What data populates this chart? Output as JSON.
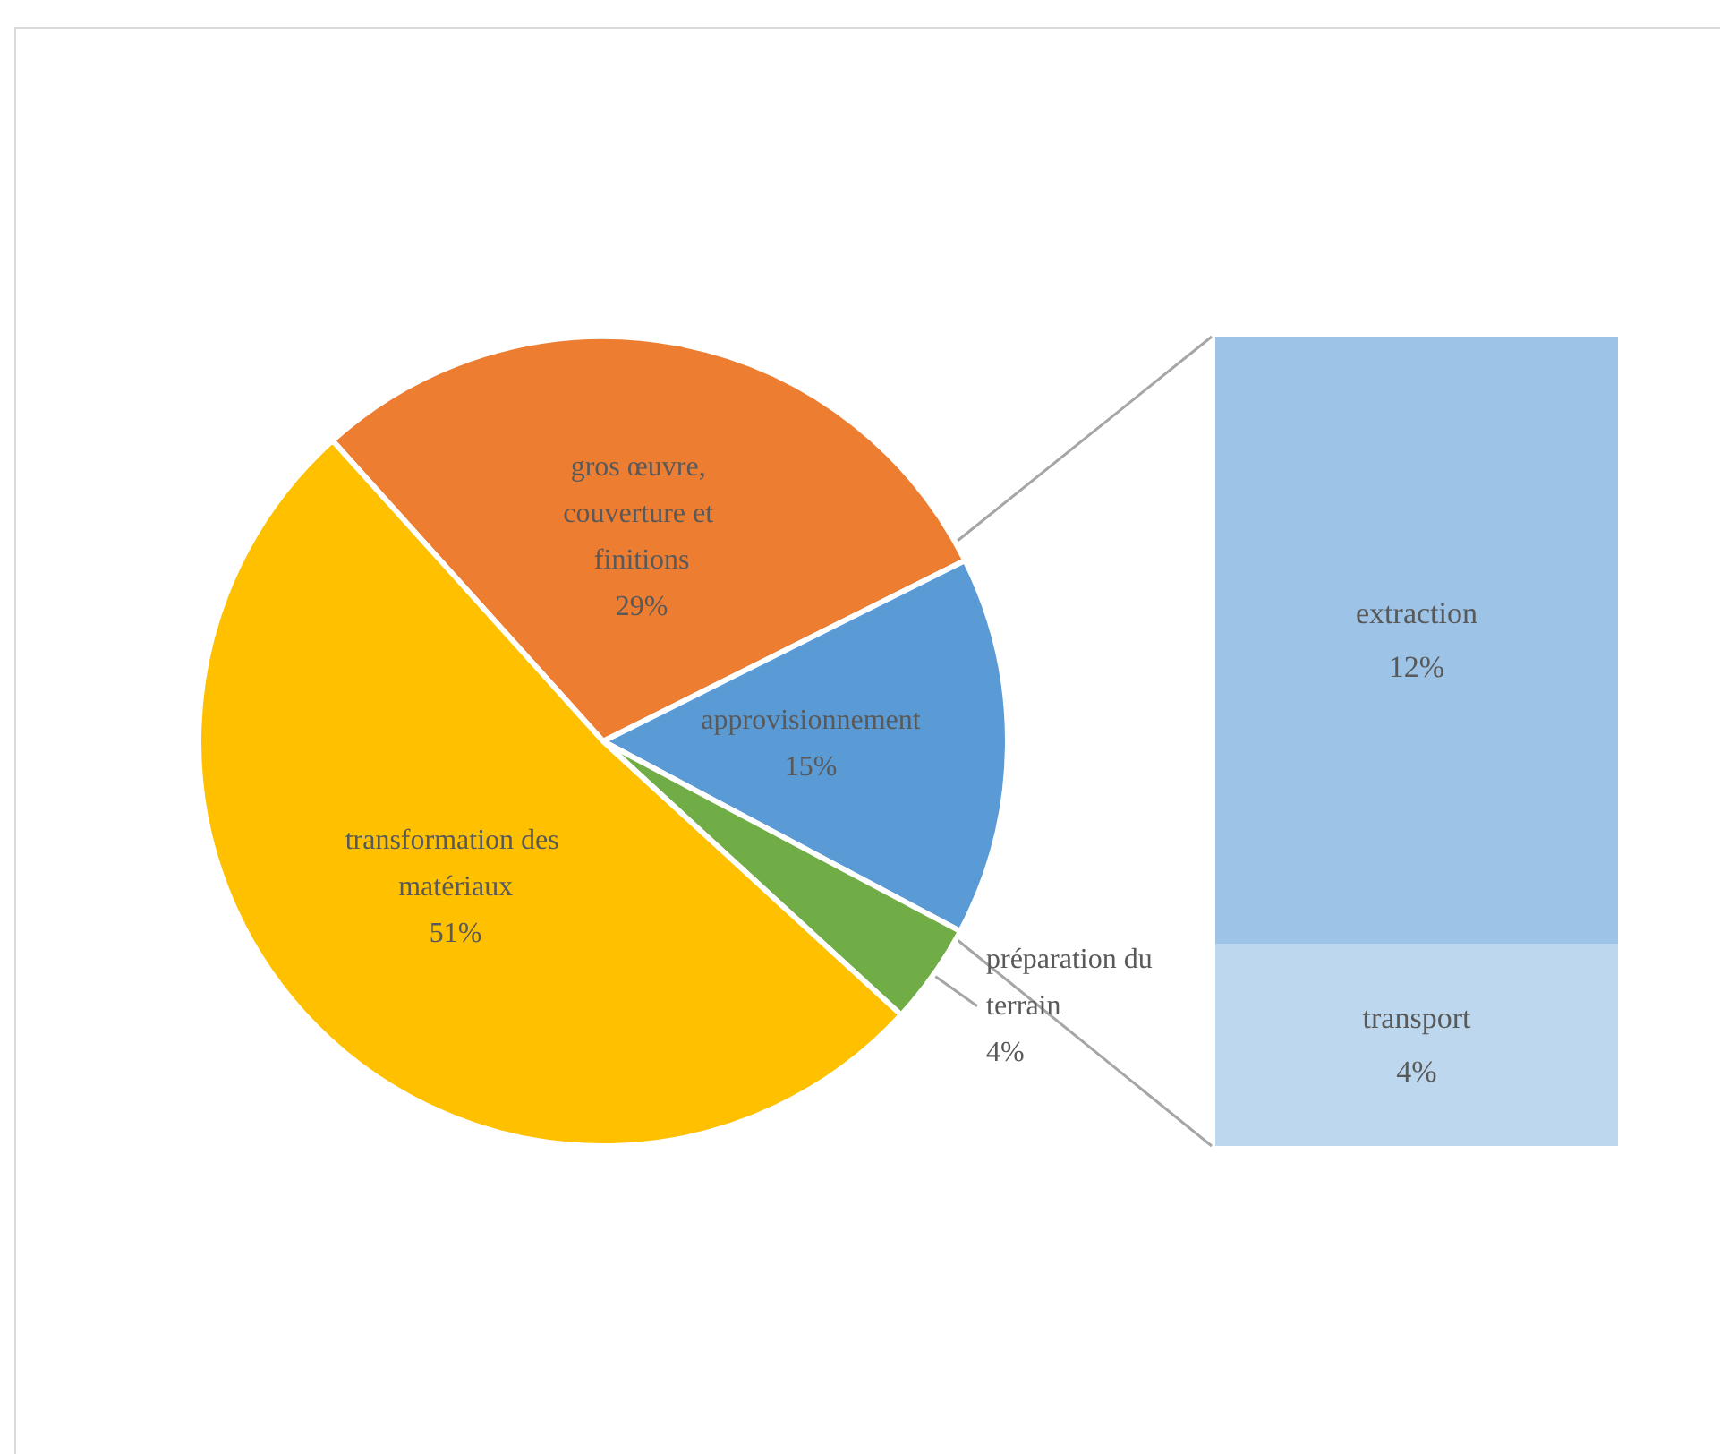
{
  "chart_data": [
    {
      "type": "pie",
      "categories": [
        "gros œuvre, couverture et finitions",
        "approvisionnement",
        "préparation du terrain",
        "transformation des matériaux"
      ],
      "values": [
        29,
        15,
        4,
        51
      ],
      "value_labels": [
        "29%",
        "15%",
        "4%",
        "51%"
      ],
      "colors": [
        "#ed7d31",
        "#5b9bd5",
        "#70ad47",
        "#ffc000"
      ]
    },
    {
      "type": "bar",
      "stacked": true,
      "categories": [
        null
      ],
      "series": [
        {
          "name": "transport",
          "color": "#bdd7ee",
          "values": [
            4
          ],
          "value_labels": [
            "4%"
          ]
        },
        {
          "name": "extraction",
          "color": "#9dc3e6",
          "values": [
            12
          ],
          "value_labels": [
            "12%"
          ]
        }
      ]
    }
  ]
}
